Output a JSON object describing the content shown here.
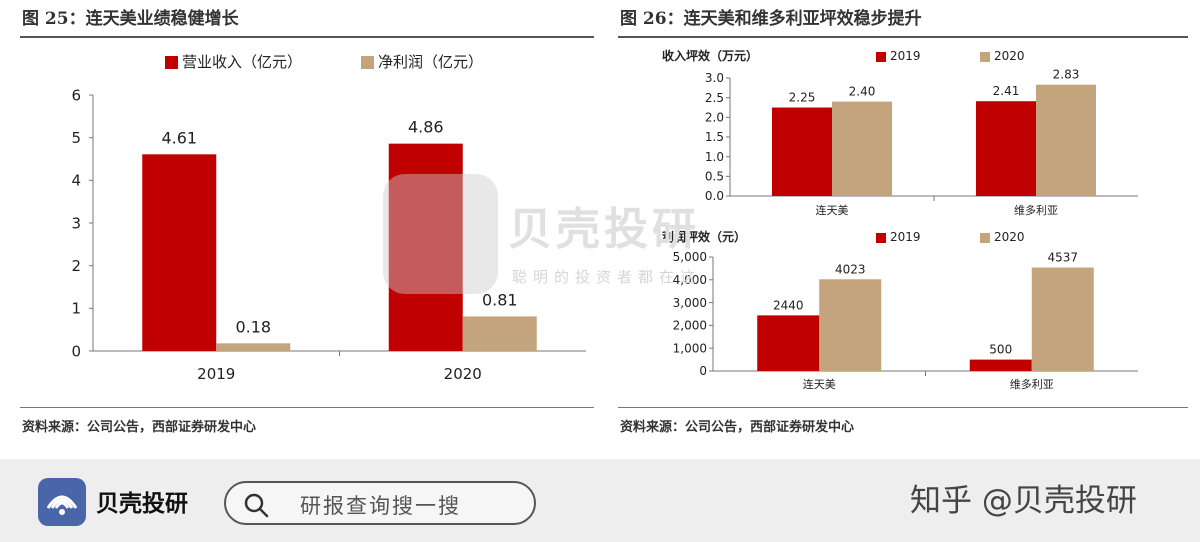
{
  "figure_left": {
    "title": "图 25：连天美业绩稳健增长",
    "source": "资料来源：公司公告，西部证券研发中心"
  },
  "figure_right": {
    "title": "图 26：连天美和维多利亚坪效稳步提升",
    "source": "资料来源：公司公告，西部证券研发中心"
  },
  "watermark": {
    "text": "贝壳投研",
    "subtext": "聪明的投资者都在这"
  },
  "footer": {
    "brand": "贝壳投研",
    "search_placeholder": "研报查询搜一搜",
    "credit": "知乎 @贝壳投研"
  },
  "colors": {
    "red": "#c00000",
    "tan": "#c4a47c",
    "axis": "#777777"
  },
  "chart_data": [
    {
      "type": "bar",
      "categories": [
        "2019",
        "2020"
      ],
      "series": [
        {
          "name": "营业收入（亿元）",
          "values": [
            4.61,
            4.86
          ],
          "color": "#c00000"
        },
        {
          "name": "净利润（亿元）",
          "values": [
            0.18,
            0.81
          ],
          "color": "#c4a47c"
        }
      ],
      "data_labels": [
        [
          "4.61",
          "4.86"
        ],
        [
          "0.18",
          "0.81"
        ]
      ],
      "ylim": [
        0,
        6
      ],
      "yticks": [
        "0",
        "1",
        "2",
        "3",
        "4",
        "5",
        "6"
      ],
      "legend": "top",
      "grid": false
    },
    {
      "type": "bar",
      "ylabel": "收入坪效（万元）",
      "categories": [
        "连天美",
        "维多利亚"
      ],
      "series": [
        {
          "name": "2019",
          "values": [
            2.25,
            2.41
          ],
          "color": "#c00000"
        },
        {
          "name": "2020",
          "values": [
            2.4,
            2.83
          ],
          "color": "#c4a47c"
        }
      ],
      "data_labels": [
        [
          "2.25",
          "2.41"
        ],
        [
          "2.40",
          "2.83"
        ]
      ],
      "ylim": [
        0,
        3
      ],
      "yticks": [
        "0.0",
        "0.5",
        "1.0",
        "1.5",
        "2.0",
        "2.5",
        "3.0"
      ],
      "legend": "top",
      "grid": false
    },
    {
      "type": "bar",
      "ylabel": "利润坪效（元）",
      "categories": [
        "连天美",
        "维多利亚"
      ],
      "series": [
        {
          "name": "2019",
          "values": [
            2440,
            500
          ],
          "color": "#c00000"
        },
        {
          "name": "2020",
          "values": [
            4023,
            4537
          ],
          "color": "#c4a47c"
        }
      ],
      "data_labels": [
        [
          "2440",
          "500"
        ],
        [
          "4023",
          "4537"
        ]
      ],
      "ylim": [
        0,
        5000
      ],
      "yticks": [
        "0",
        "1,000",
        "2,000",
        "3,000",
        "4,000",
        "5,000"
      ],
      "legend": "top",
      "grid": false
    }
  ]
}
